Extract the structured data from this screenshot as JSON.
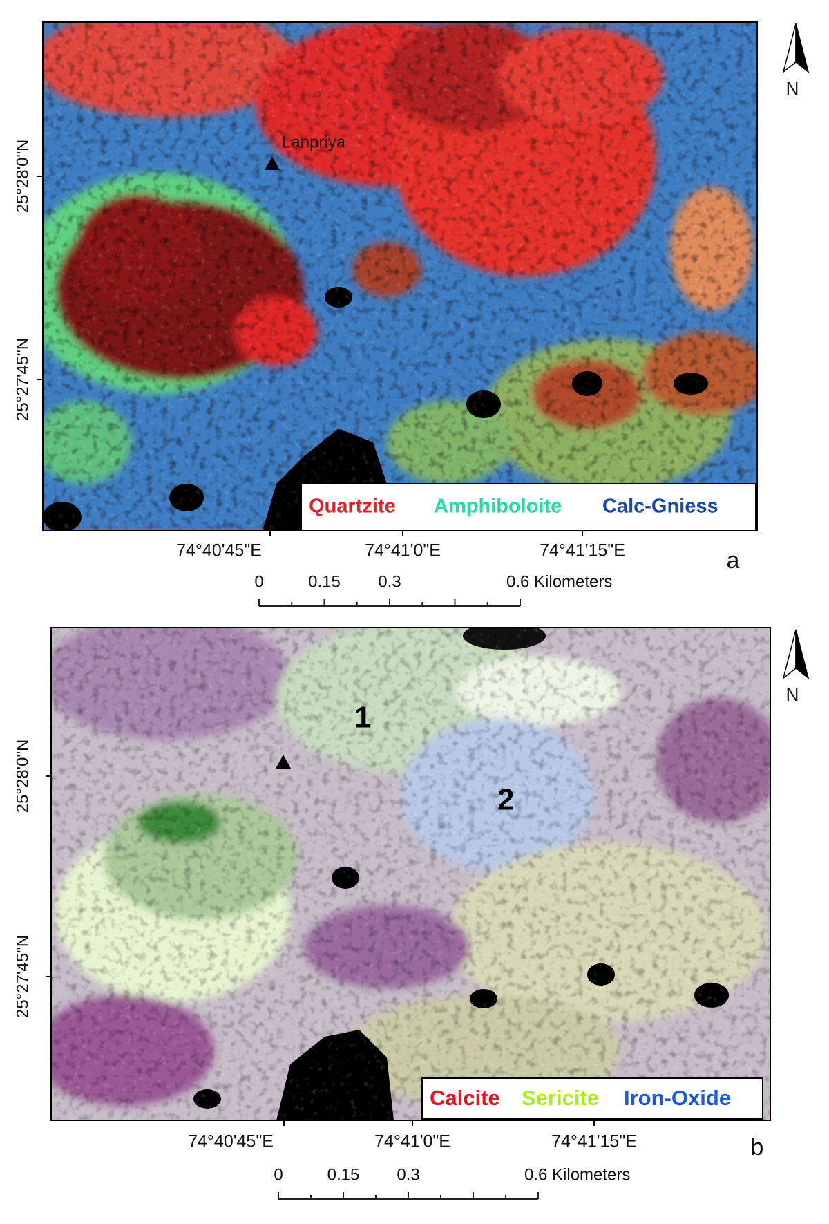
{
  "panels": [
    {
      "panel_label": "a",
      "lat_labels": [
        "25°28'0\"N",
        "25°27'45\"N"
      ],
      "lon_labels": [
        "74°40'45\"E",
        "74°41'0\"E",
        "74°41'15\"E"
      ],
      "legend": [
        {
          "label": "Quartzite",
          "color": "#e5202a"
        },
        {
          "label": "Amphiboloite",
          "color": "#22dca0"
        },
        {
          "label": "Calc-Gniess",
          "color": "#1c4aa6"
        }
      ],
      "scale_labels": [
        "0",
        "0.15",
        "0.3",
        "0.6 Kilometers"
      ],
      "north": "N",
      "annotations": [
        "Lanpriya"
      ]
    },
    {
      "panel_label": "b",
      "lat_labels": [
        "25°28'0\"N",
        "25°27'45\"N"
      ],
      "lon_labels": [
        "74°40'45\"E",
        "74°41'0\"E",
        "74°41'15\"E"
      ],
      "legend": [
        {
          "label": "Calcite",
          "color": "#e8141e"
        },
        {
          "label": "Sericite",
          "color": "#a8ee22"
        },
        {
          "label": "Iron-Oxide",
          "color": "#1a5ae2"
        }
      ],
      "scale_labels": [
        "0",
        "0.15",
        "0.3",
        "0.6 Kilometers"
      ],
      "north": "N",
      "annotations": [
        "1",
        "2"
      ]
    }
  ]
}
